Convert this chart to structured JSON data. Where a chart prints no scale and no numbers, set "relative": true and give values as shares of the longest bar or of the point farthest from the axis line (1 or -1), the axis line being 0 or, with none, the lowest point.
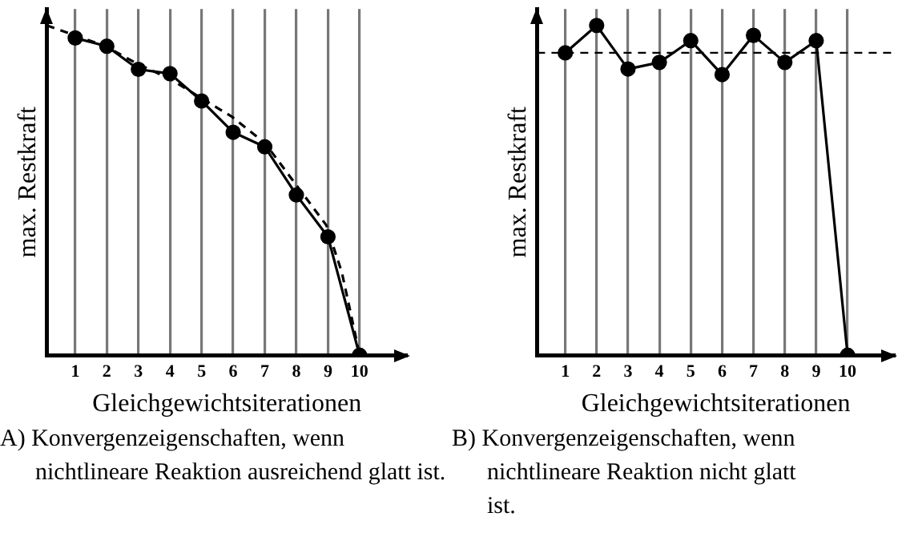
{
  "chart_data": [
    {
      "type": "line",
      "xlabel": "Gleichgewichtsiterationen",
      "ylabel": "max. Restkraft",
      "annotations": [
        "A) Konvergenzeigenschaften, wenn nichtlineare Reaktion ausreichend glatt ist."
      ],
      "relative": true,
      "x": [
        1,
        2,
        3,
        4,
        5,
        6,
        7,
        8,
        9,
        10
      ],
      "xlim": [
        0.1,
        11.5
      ],
      "xticks": [
        1,
        2,
        3,
        4,
        5,
        6,
        7,
        8,
        9,
        10
      ],
      "grid": "x",
      "series": [
        {
          "color": "#000000",
          "marker": "circle",
          "line_style": "solid",
          "values": [
            0.962,
            0.937,
            0.867,
            0.854,
            0.771,
            0.676,
            0.632,
            0.486,
            0.359,
            0
          ]
        },
        {
          "type": "line",
          "color": "#000000",
          "marker": "none",
          "line_style": "dashed",
          "x": [
            0.1,
            1.96,
            2.98,
            4.0,
            5.07,
            5.95,
            7.0,
            7.96,
            8.95,
            9.44,
            9.8,
            10
          ],
          "values": [
            1,
            0.937,
            0.883,
            0.838,
            0.775,
            0.724,
            0.644,
            0.521,
            0.394,
            0.251,
            0.092,
            0
          ]
        }
      ]
    },
    {
      "type": "line",
      "xlabel": "Gleichgewichtsiterationen",
      "ylabel": "max. Restkraft",
      "annotations": [
        "B) Konvergenzeigenschaften, wenn nichtlineare Reaktion nicht glatt ist."
      ],
      "relative": true,
      "x": [
        1,
        2,
        3,
        4,
        5,
        6,
        7,
        8,
        9,
        10
      ],
      "xlim": [
        0.1,
        11.5
      ],
      "xticks": [
        1,
        2,
        3,
        4,
        5,
        6,
        7,
        8,
        9,
        10
      ],
      "grid": "x",
      "ref_lines": [
        {
          "axis": "y",
          "value": 0.917,
          "color": "#000000",
          "line_style": "dashed"
        }
      ],
      "series": [
        {
          "color": "#000000",
          "marker": "circle",
          "line_style": "solid",
          "values": [
            0.917,
            1,
            0.868,
            0.888,
            0.954,
            0.851,
            0.97,
            0.888,
            0.954,
            0
          ]
        }
      ]
    }
  ]
}
